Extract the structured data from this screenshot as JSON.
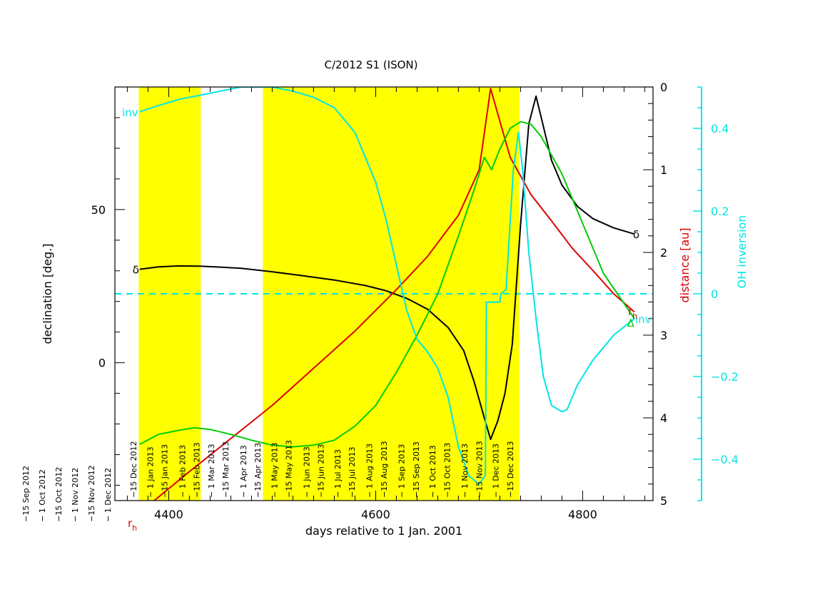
{
  "chart_data": {
    "type": "line",
    "title": "C/2012 S1 (ISON)",
    "xlabel": "days relative to 1 Jan. 2001",
    "ylabel_left": "declination [deg.]",
    "ylabel_right1_prefix": "distance ",
    "ylabel_right1_unit": "[au]",
    "ylabel_right2": "OH inversion",
    "xlim": [
      4348,
      4868
    ],
    "ylim_left": [
      -45,
      90
    ],
    "ylim_right1": [
      5,
      0
    ],
    "ylim_right2": [
      -0.5,
      0.5
    ],
    "x_ticks": [
      4400,
      4600,
      4800
    ],
    "y_left_ticks": [
      0,
      50
    ],
    "y_right1_ticks": [
      0,
      1,
      2,
      3,
      4,
      5
    ],
    "y_right2_ticks": [
      -0.4,
      -0.2,
      0,
      0.2,
      0.4
    ],
    "y_right2_tick_labels": [
      "−0.4",
      "−0.2",
      "0",
      "0.2",
      "0.4"
    ],
    "yellow_bands": [
      [
        4371,
        4431
      ],
      [
        4491,
        4739
      ]
    ],
    "bg_colors": {
      "band": "#ffff00",
      "declination": "#000000",
      "distance": "#dd0000",
      "geo": "#00cc00",
      "inversion": "#00e5e5"
    },
    "zero_line_inversion": 0,
    "series": [
      {
        "key": "declination",
        "label": "δ",
        "axis": "left",
        "x": [
          4372,
          4390,
          4410,
          4430,
          4450,
          4470,
          4500,
          4530,
          4560,
          4590,
          4610,
          4630,
          4650,
          4670,
          4685,
          4695,
          4705,
          4711,
          4718,
          4725,
          4732,
          4740,
          4748,
          4755,
          4760,
          4770,
          4780,
          4795,
          4810,
          4830,
          4850
        ],
        "y": [
          30.5,
          31.3,
          31.6,
          31.5,
          31.2,
          30.8,
          29.7,
          28.4,
          27.0,
          25.2,
          23.5,
          21.0,
          17.5,
          11.5,
          4.0,
          -6.0,
          -18.0,
          -25.0,
          -19.0,
          -10.0,
          6.0,
          45.0,
          78.0,
          87.0,
          80.0,
          66.0,
          58.0,
          51.0,
          47.0,
          44.0,
          42.0
        ]
      },
      {
        "key": "rh",
        "label": "r",
        "label_sub": "h",
        "axis": "right1",
        "x": [
          4386,
          4420,
          4460,
          4500,
          4540,
          4580,
          4620,
          4650,
          4680,
          4700,
          4711,
          4730,
          4750,
          4770,
          4790,
          4810,
          4830,
          4850
        ],
        "y": [
          5.0,
          4.65,
          4.25,
          3.85,
          3.4,
          2.95,
          2.45,
          2.05,
          1.55,
          1.0,
          0.02,
          0.85,
          1.3,
          1.62,
          1.95,
          2.22,
          2.5,
          2.72
        ]
      },
      {
        "key": "delta",
        "label": "Δ",
        "axis": "right1",
        "x": [
          4372,
          4390,
          4410,
          4425,
          4440,
          4460,
          4480,
          4500,
          4520,
          4540,
          4560,
          4580,
          4600,
          4620,
          4640,
          4660,
          4680,
          4695,
          4705,
          4712,
          4720,
          4730,
          4740,
          4750,
          4760,
          4780,
          4800,
          4820,
          4850
        ],
        "y": [
          4.32,
          4.2,
          4.15,
          4.12,
          4.14,
          4.2,
          4.27,
          4.33,
          4.35,
          4.33,
          4.27,
          4.1,
          3.85,
          3.45,
          3.0,
          2.5,
          1.8,
          1.25,
          0.85,
          1.0,
          0.75,
          0.5,
          0.42,
          0.45,
          0.6,
          1.05,
          1.65,
          2.25,
          2.8
        ]
      },
      {
        "key": "inversion",
        "label": "inv",
        "axis": "right2",
        "x": [
          4372,
          4390,
          4410,
          4430,
          4450,
          4470,
          4490,
          4500,
          4520,
          4540,
          4560,
          4580,
          4600,
          4610,
          4620,
          4630,
          4640,
          4650,
          4660,
          4670,
          4680,
          4690,
          4695,
          4700,
          4706,
          4707,
          4720,
          4721,
          4726,
          4727,
          4733,
          4738,
          4742,
          4748,
          4755,
          4762,
          4770,
          4780,
          4785,
          4795,
          4810,
          4830,
          4850
        ],
        "y": [
          0.44,
          0.455,
          0.47,
          0.48,
          0.49,
          0.5,
          0.5,
          0.5,
          0.49,
          0.475,
          0.45,
          0.39,
          0.27,
          0.18,
          0.07,
          -0.04,
          -0.11,
          -0.14,
          -0.18,
          -0.25,
          -0.37,
          -0.44,
          -0.45,
          -0.46,
          -0.44,
          -0.02,
          -0.02,
          0.0,
          0.01,
          0.05,
          0.3,
          0.39,
          0.3,
          0.1,
          -0.06,
          -0.2,
          -0.27,
          -0.285,
          -0.28,
          -0.22,
          -0.16,
          -0.1,
          -0.06
        ]
      }
    ],
    "date_labels": {
      "left_margin": [
        "−15 Sep 2012",
        "− 1 Oct 2012",
        "−15 Oct 2012",
        "− 1 Nov 2012",
        "−15 Nov 2012",
        "− 1 Dec 2012"
      ],
      "in_plot": [
        {
          "day": 4366,
          "text": "−15 Dec 2012"
        },
        {
          "day": 4382,
          "text": "− 1 Jan 2013"
        },
        {
          "day": 4396,
          "text": "−15 Jan 2013"
        },
        {
          "day": 4413,
          "text": "− 1 Feb 2013"
        },
        {
          "day": 4427,
          "text": "−15 Feb 2013"
        },
        {
          "day": 4441,
          "text": "− 1 Mar 2013"
        },
        {
          "day": 4455,
          "text": "−15 Mar 2013"
        },
        {
          "day": 4472,
          "text": "− 1 Apr 2013"
        },
        {
          "day": 4486,
          "text": "−15 Apr 2013"
        },
        {
          "day": 4502,
          "text": "− 1 May 2013"
        },
        {
          "day": 4516,
          "text": "−15 May 2013"
        },
        {
          "day": 4533,
          "text": "− 1 Jun 2013"
        },
        {
          "day": 4547,
          "text": "−15 Jun 2013"
        },
        {
          "day": 4563,
          "text": "− 1 Jul 2013"
        },
        {
          "day": 4577,
          "text": "−15 Jul 2013"
        },
        {
          "day": 4594,
          "text": "− 1 Aug 2013"
        },
        {
          "day": 4608,
          "text": "−15 Aug 2013"
        },
        {
          "day": 4625,
          "text": "− 1 Sep 2013"
        },
        {
          "day": 4639,
          "text": "−15 Sep 2013"
        },
        {
          "day": 4655,
          "text": "− 1 Oct 2013"
        },
        {
          "day": 4669,
          "text": "−15 Oct 2013"
        },
        {
          "day": 4686,
          "text": "− 1 Nov 2013"
        },
        {
          "day": 4700,
          "text": "−15 Nov 2013"
        },
        {
          "day": 4716,
          "text": "− 1 Dec 2013"
        },
        {
          "day": 4730,
          "text": "−15 Dec 2013"
        }
      ]
    }
  }
}
